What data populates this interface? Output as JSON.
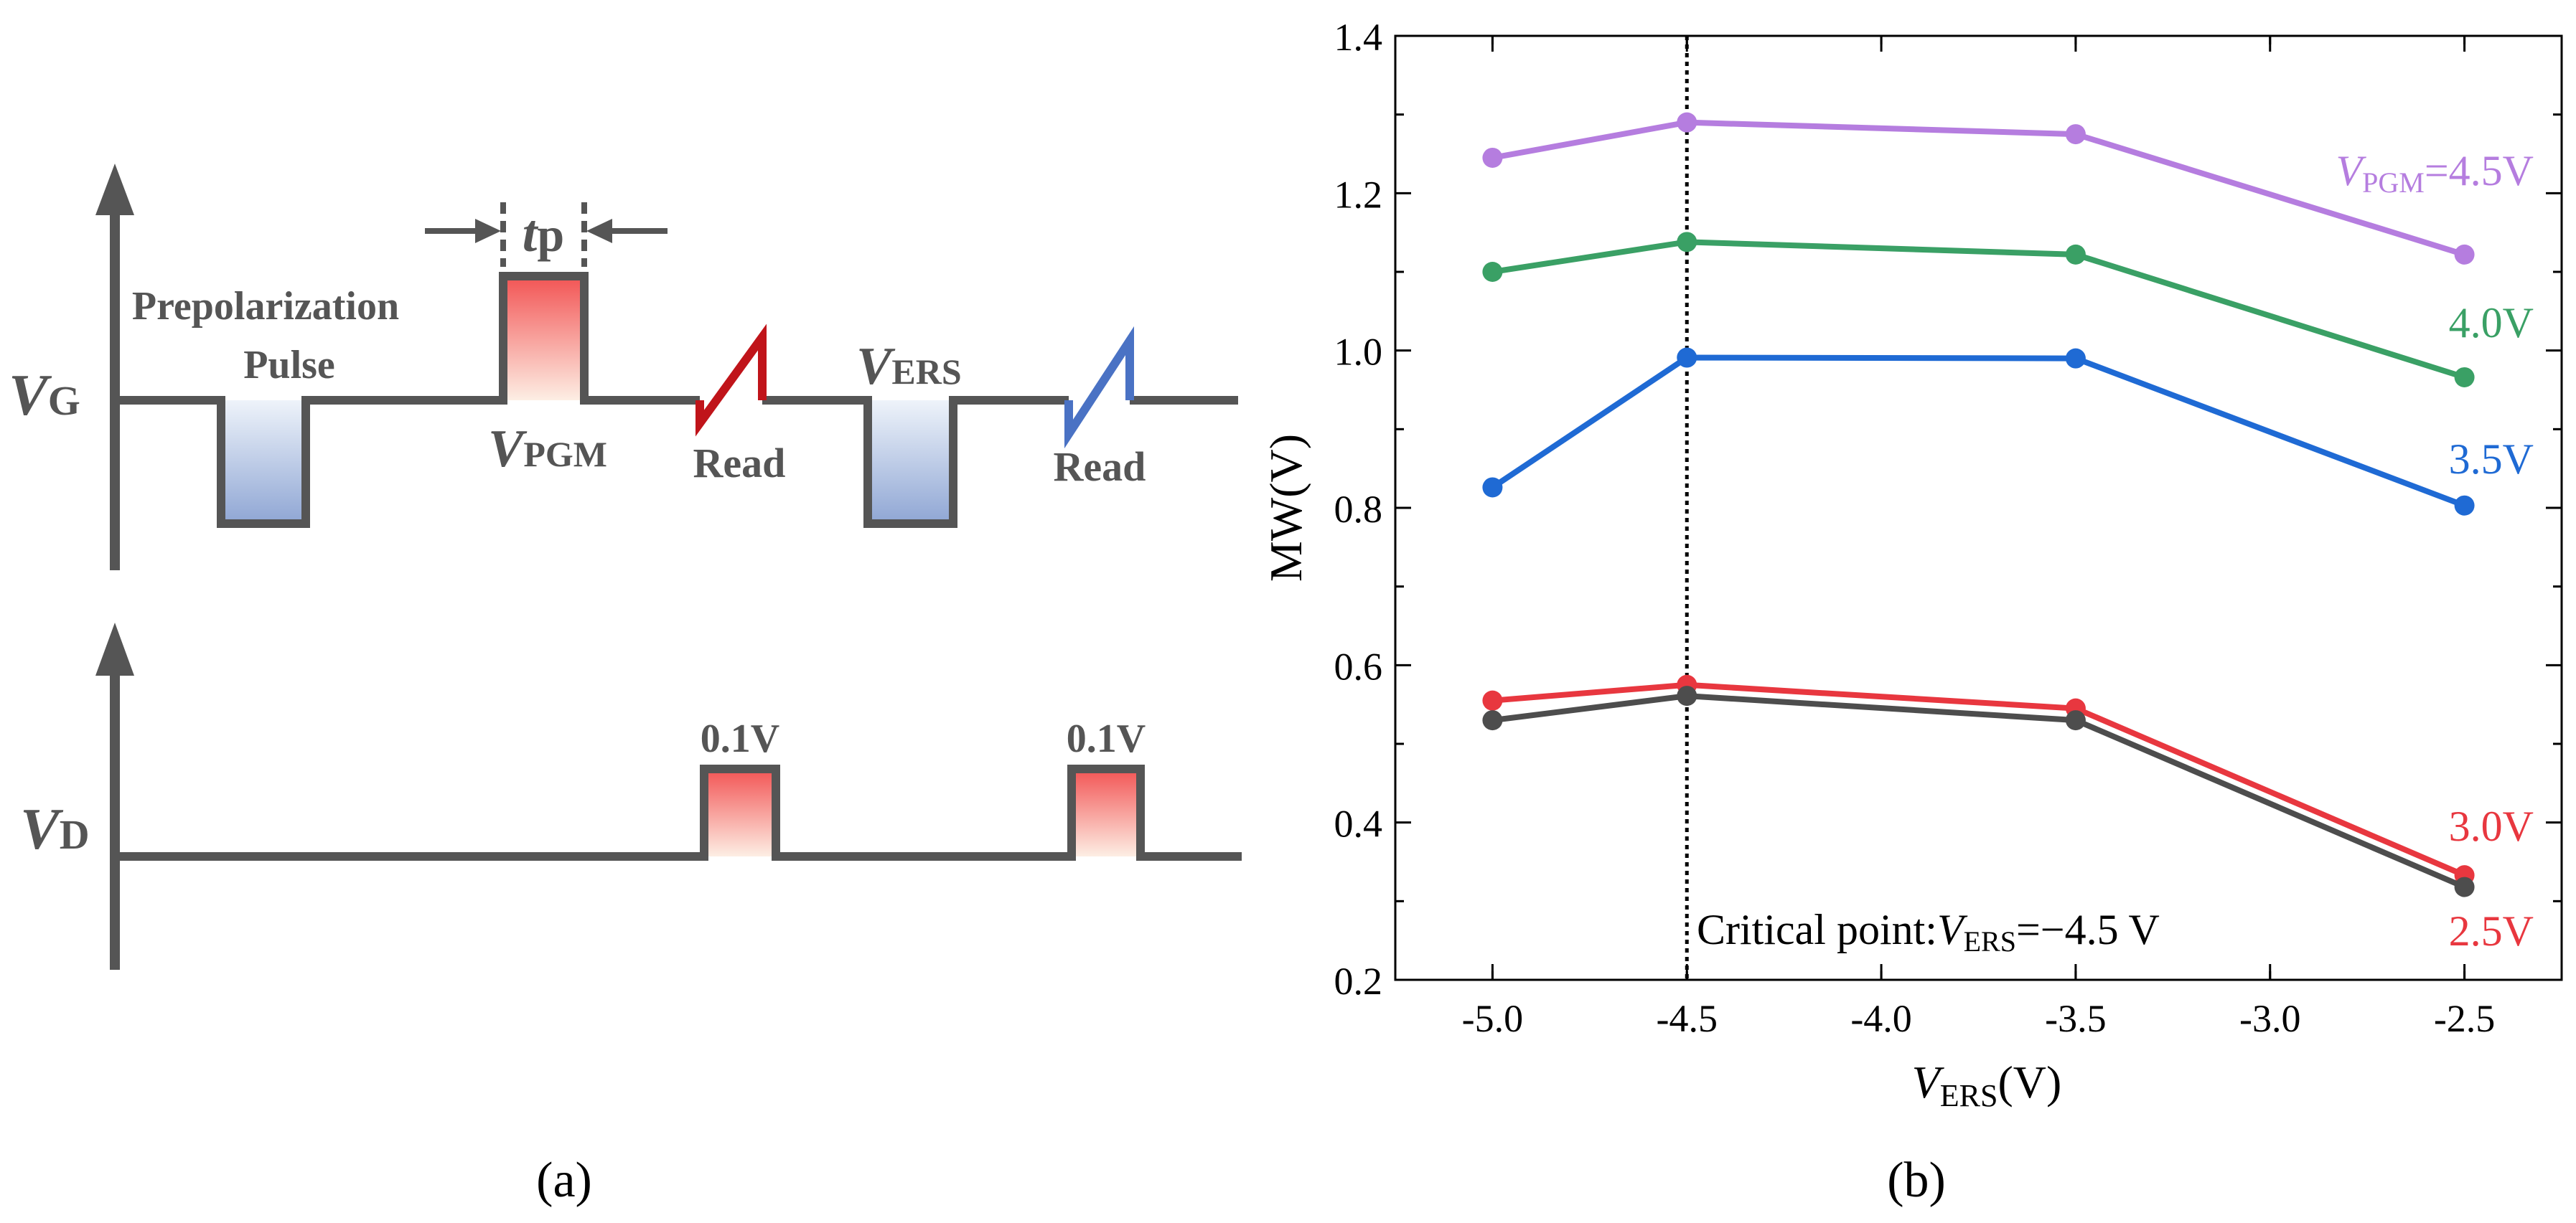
{
  "panel_a": {
    "caption": "(a)",
    "vg_label": {
      "main": "V",
      "sub": "G"
    },
    "vd_label": {
      "main": "V",
      "sub": "D"
    },
    "prepolarization_line1": "Prepolarization",
    "prepolarization_line2": "Pulse",
    "tp_label": {
      "main": "t",
      "sub": "p"
    },
    "vpgm_label": {
      "main": "V",
      "sub": "PGM"
    },
    "vers_label": {
      "main": "V",
      "sub": "ERS"
    },
    "read1_label": "Read",
    "read2_label": "Read",
    "vd_pulse1_label": "0.1V",
    "vd_pulse2_label": "0.1V",
    "colors": {
      "line": "#555555",
      "program_pulse_top": "#f25454",
      "program_pulse_bottom": "#fdeee4",
      "erase_pulse_top": "#eef3fa",
      "erase_pulse_bottom": "#8fa6d4",
      "read1": "#c0141a",
      "read2": "#4a72c4"
    }
  },
  "panel_b": {
    "caption": "(b)",
    "critical_text": "Critical point:",
    "critical_vers": {
      "main": "V",
      "sub": "ERS"
    },
    "critical_value": "=−4.5 V",
    "curve_labels": {
      "4.5": {
        "prefix": "V",
        "sub": "PGM",
        "text": "=4.5V"
      },
      "4.0": "4.0V",
      "3.5": "3.5V",
      "3.0": "3.0V",
      "2.5": "2.5V"
    }
  },
  "chart_data": {
    "type": "line",
    "title": "",
    "xlabel": {
      "main": "V",
      "sub": "ERS",
      "suffix": "(V)"
    },
    "ylabel": "MW(V)",
    "x": [
      -5.0,
      -4.5,
      -3.5,
      -2.5
    ],
    "xlim": [
      -5.25,
      -2.25
    ],
    "ylim": [
      0.2,
      1.4
    ],
    "xticks": [
      -5.0,
      -4.5,
      -4.0,
      -3.5,
      -3.0,
      -2.5
    ],
    "xtick_labels": [
      "-5.0",
      "-4.5",
      "-4.0",
      "-3.5",
      "-3.0",
      "-2.5"
    ],
    "yticks": [
      0.2,
      0.4,
      0.6,
      0.8,
      1.0,
      1.2,
      1.4
    ],
    "ytick_labels": [
      "0.2",
      "0.4",
      "0.6",
      "0.8",
      "1.0",
      "1.2",
      "1.4"
    ],
    "grid": false,
    "critical_x": -4.5,
    "series": [
      {
        "name": "VPGM=4.5V",
        "color": "#b57ddf",
        "values": [
          1.245,
          1.29,
          1.275,
          1.122
        ]
      },
      {
        "name": "4.0V",
        "color": "#3aa065",
        "values": [
          1.1,
          1.138,
          1.122,
          0.966
        ]
      },
      {
        "name": "3.5V",
        "color": "#1f6ad4",
        "values": [
          0.826,
          0.991,
          0.99,
          0.803
        ]
      },
      {
        "name": "3.0V",
        "color": "#e8373f",
        "values": [
          0.555,
          0.575,
          0.545,
          0.333
        ]
      },
      {
        "name": "2.5V",
        "color": "#4d4d4d",
        "values": [
          0.53,
          0.561,
          0.53,
          0.318
        ]
      }
    ]
  }
}
